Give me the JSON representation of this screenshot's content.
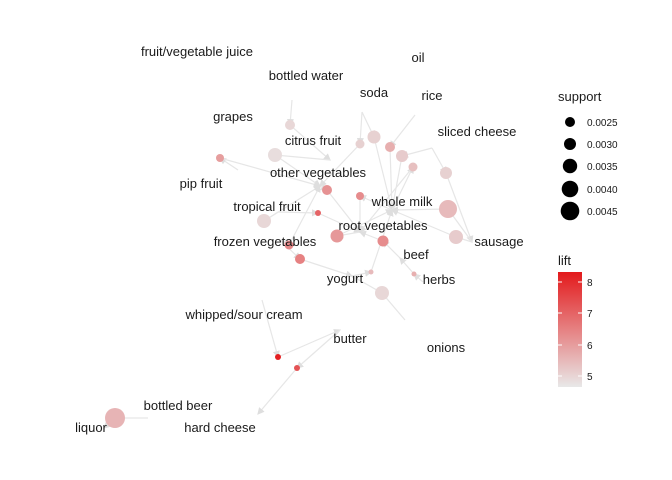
{
  "graph": {
    "type": "association-rules-network",
    "items": [
      "fruit/vegetable juice",
      "oil",
      "bottled water",
      "soda",
      "rice",
      "grapes",
      "sliced cheese",
      "citrus fruit",
      "pip fruit",
      "other vegetables",
      "whole milk",
      "tropical fruit",
      "root vegetables",
      "sausage",
      "frozen vegetables",
      "beef",
      "yogurt",
      "herbs",
      "whipped/sour cream",
      "butter",
      "onions",
      "bottled beer",
      "liquor",
      "hard cheese"
    ],
    "rules_shown_as_circles": "size = support, colour = lift"
  },
  "legend": {
    "support": {
      "title": "support",
      "values": [
        "0.0025",
        "0.0030",
        "0.0035",
        "0.0040",
        "0.0045"
      ]
    },
    "lift": {
      "title": "lift",
      "ticks": [
        "8",
        "7",
        "6",
        "5"
      ],
      "color_low": "#e8e8e8",
      "color_high": "#e31a1c"
    }
  },
  "colors": {
    "edge": "#e6e6e6",
    "label": "#1a1a1a"
  }
}
